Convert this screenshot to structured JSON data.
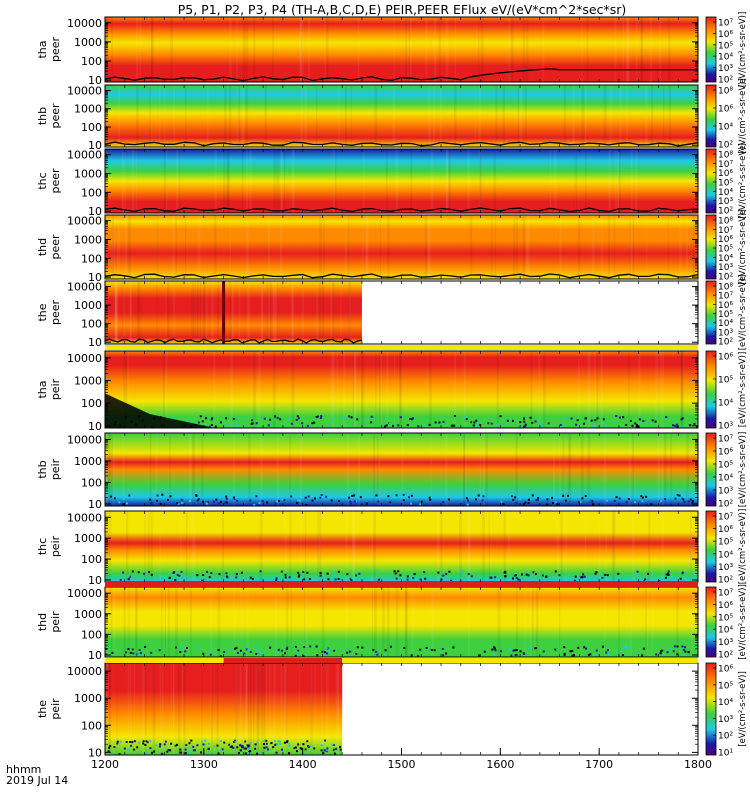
{
  "title": "P5, P1, P2, P3, P4 (TH-A,B,C,D,E) PEIR,PEER EFlux eV/(eV*cm^2*sec*sr)",
  "footer": {
    "time_label": "hhmm",
    "date_label": "2019 Jul 14"
  },
  "colors": {
    "low": "#1a1aa0",
    "mid_low": "#1ec8e6",
    "mid": "#3ed03e",
    "mid_high": "#f5e600",
    "high": "#ff8a00",
    "max": "#e61e1e",
    "fill_black": "#000000",
    "bar_yellow": "#f3e600",
    "bar_red": "#dc1e1e"
  },
  "chart_data": {
    "type": "heatmap",
    "x_axis": {
      "range": [
        1200,
        1800
      ],
      "ticks": [
        "1200",
        "1300",
        "1400",
        "1500",
        "1600",
        "1700",
        "1800"
      ]
    },
    "y_axis": {
      "scale": "log",
      "range": [
        8,
        20000
      ],
      "ticks": [
        "10",
        "100",
        "1000",
        "10000"
      ],
      "unit": "eV"
    },
    "panels": [
      {
        "ylabel": [
          "tha",
          "peer"
        ],
        "colorbar_ticks": [
          "10²",
          "10³",
          "10⁴",
          "10⁵",
          "10⁶",
          "10⁷"
        ],
        "colorbar_label": "[eV/(cm²-s-sr-eV)]",
        "data_end": 1800
      },
      {
        "ylabel": [
          "thb",
          "peer"
        ],
        "colorbar_ticks": [
          "10²",
          "10⁴",
          "10⁶",
          "10⁸"
        ],
        "colorbar_label": "[eV/(cm²-s-sr-eV)]",
        "data_end": 1800
      },
      {
        "ylabel": [
          "thc",
          "peer"
        ],
        "colorbar_ticks": [
          "10²",
          "10³",
          "10⁴",
          "10⁵",
          "10⁶",
          "10⁷",
          "10⁸"
        ],
        "colorbar_label": "[eV/(cm²-s-sr-eV)]",
        "data_end": 1800
      },
      {
        "ylabel": [
          "thd",
          "peer"
        ],
        "colorbar_ticks": [
          "10²",
          "10³",
          "10⁴",
          "10⁵",
          "10⁶",
          "10⁷",
          "10⁸"
        ],
        "colorbar_label": "[eV/(cm²-s-sr-eV)]",
        "data_end": 1800
      },
      {
        "ylabel": [
          "the",
          "peer"
        ],
        "colorbar_ticks": [
          "10²",
          "10³",
          "10⁴",
          "10⁵",
          "10⁶",
          "10⁷",
          "10⁸"
        ],
        "colorbar_label": "[eV/(cm²-s-sr-eV)]",
        "data_end": 1460
      },
      {
        "ylabel": [
          "tha",
          "peir"
        ],
        "colorbar_ticks": [
          "10³",
          "10⁴",
          "10⁵",
          "10⁶"
        ],
        "colorbar_label": "[eV/(cm²-s-sr-eV)]",
        "data_end": 1800
      },
      {
        "ylabel": [
          "thb",
          "peir"
        ],
        "colorbar_ticks": [
          "10²",
          "10³",
          "10⁴",
          "10⁵",
          "10⁶",
          "10⁷"
        ],
        "colorbar_label": "[eV/(cm²-s-sr-eV)]",
        "data_end": 1800
      },
      {
        "ylabel": [
          "thc",
          "peir"
        ],
        "colorbar_ticks": [
          "10²",
          "10³",
          "10⁴",
          "10⁵",
          "10⁶",
          "10⁷"
        ],
        "colorbar_label": "[eV/(cm²-s-sr-eV)]",
        "data_end": 1800
      },
      {
        "ylabel": [
          "thd",
          "peir"
        ],
        "colorbar_ticks": [
          "10²",
          "10³",
          "10⁴",
          "10⁵",
          "10⁶",
          "10⁷"
        ],
        "colorbar_label": "[eV/(cm²-s-sr-eV)]",
        "data_end": 1800
      },
      {
        "ylabel": [
          "the",
          "peir"
        ],
        "colorbar_ticks": [
          "10¹",
          "10²",
          "10³",
          "10⁴",
          "10⁵",
          "10⁶"
        ],
        "colorbar_label": "[eV/(cm²-s-sr-eV)]",
        "data_end": 1440
      }
    ],
    "status_bars": [
      {
        "segments": [
          {
            "from": 1200,
            "to": 1800,
            "color": "yellow"
          }
        ]
      },
      {
        "segments": [
          {
            "from": 1200,
            "to": 1800,
            "color": "red"
          }
        ]
      },
      {
        "segments": [
          {
            "from": 1200,
            "to": 1320,
            "color": "yellow"
          },
          {
            "from": 1320,
            "to": 1440,
            "color": "red"
          },
          {
            "from": 1440,
            "to": 1800,
            "color": "yellow"
          }
        ]
      }
    ]
  }
}
